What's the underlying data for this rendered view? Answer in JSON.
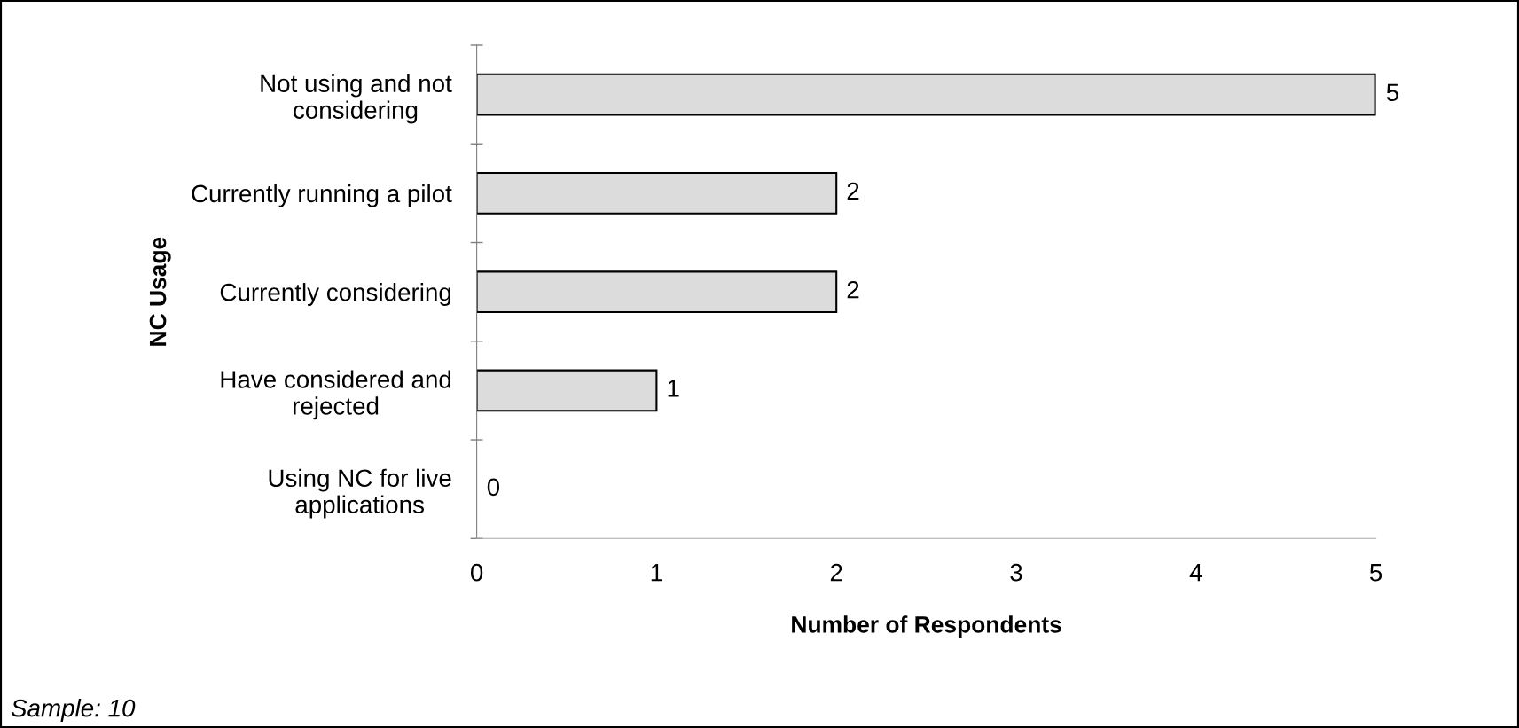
{
  "chart_data": {
    "type": "bar",
    "orientation": "horizontal",
    "categories": [
      "Not using and not\nconsidering",
      "Currently running a pilot",
      "Currently considering",
      "Have considered and\nrejected",
      "Using NC for live\napplications"
    ],
    "values": [
      5,
      2,
      2,
      1,
      0
    ],
    "color": "#dcdcdc",
    "xlim": [
      0,
      5
    ],
    "xticks": [
      0,
      1,
      2,
      3,
      4,
      5
    ],
    "xlabel": "Number of Respondents",
    "ylabel": "NC Usage",
    "data_labels": true,
    "grid": false,
    "annotations": [
      "Sample: 10"
    ]
  }
}
